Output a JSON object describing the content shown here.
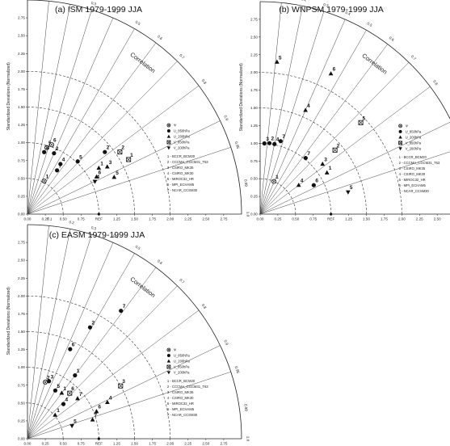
{
  "chart_data": [
    {
      "type": "taylor",
      "title": "(a) ISM 1979-1999 JJA",
      "ylabel": "Standardized Deviations (Normalized)",
      "arc_label": "Correlation",
      "ref_label": "REF",
      "xlim": [
        0,
        3.0
      ],
      "x_ticks": [
        "0.00",
        "0.25",
        "0.50",
        "0.75",
        "REF",
        "1.25",
        "1.50",
        "1.75",
        "2.00",
        "2.25",
        "2.50",
        "2.75"
      ],
      "y_ticks": [
        "0.00",
        "0.25",
        "0.50",
        "0.75",
        "1.00",
        "1.25",
        "1.50",
        "1.75",
        "2.00",
        "2.25",
        "2.50",
        "2.75"
      ],
      "correlation_ticks": [
        "0.1",
        "0.2",
        "0.3",
        "0.4",
        "0.5",
        "0.6",
        "0.7",
        "0.8",
        "0.9",
        "0.95",
        "0.99",
        "1.0"
      ],
      "legend_symbols": [
        "Ψ",
        "U_850hPa",
        "U_200hPa",
        "V_850hPa",
        "V_200hPa"
      ],
      "legend_models": [
        "1 - BCCR_BCM20",
        "2 - CCCMA_CGCM31_T63",
        "3 - CSIRO_MK35",
        "4 - CSIRO_MK30",
        "5 - MIROC32_HR",
        "6 - MPI_ECHAM5",
        "7 - NCAR_CCSM30"
      ],
      "points": [
        {
          "std": 0.52,
          "corr": 0.45,
          "label": "1",
          "marker": "circle-open"
        },
        {
          "std": 0.97,
          "corr": 0.28,
          "label": "5",
          "marker": "circle-open"
        },
        {
          "std": 1.03,
          "corr": 0.33,
          "label": "6",
          "marker": "circle-open"
        },
        {
          "std": 0.9,
          "corr": 0.26,
          "label": "3",
          "marker": "circle-filled"
        },
        {
          "std": 0.93,
          "corr": 0.4,
          "label": "2",
          "marker": "circle-filled"
        },
        {
          "std": 0.74,
          "corr": 0.56,
          "label": "7",
          "marker": "circle-filled"
        },
        {
          "std": 0.84,
          "corr": 0.55,
          "label": "4",
          "marker": "circle-filled"
        },
        {
          "std": 1.02,
          "corr": 0.69,
          "label": "5",
          "marker": "circle-filled"
        },
        {
          "std": 1.39,
          "corr": 0.78,
          "label": "2",
          "marker": "circle-filled"
        },
        {
          "std": 1.3,
          "corr": 0.86,
          "label": "3",
          "marker": "triangle"
        },
        {
          "std": 1.19,
          "corr": 0.84,
          "label": "1",
          "marker": "triangle"
        },
        {
          "std": 1.32,
          "corr": 0.92,
          "label": "5",
          "marker": "triangle"
        },
        {
          "std": 1.1,
          "corr": 0.88,
          "label": "6",
          "marker": "triangle"
        },
        {
          "std": 1.56,
          "corr": 0.83,
          "label": "2",
          "marker": "square"
        },
        {
          "std": 1.61,
          "corr": 0.88,
          "label": "1",
          "marker": "square"
        },
        {
          "std": 1.05,
          "corr": 0.9,
          "label": "4",
          "marker": "triangle-down"
        }
      ]
    },
    {
      "type": "taylor",
      "title": "(b) WNPSM 1979-1999 JJA",
      "ylabel": "Standardized Deviations (Normalized)",
      "arc_label": "Correlation",
      "ref_label": "REF",
      "xlim": [
        0,
        3.0
      ],
      "x_ticks": [
        "0.00",
        "0.25",
        "0.50",
        "0.75",
        "REF",
        "1.25",
        "1.50",
        "1.75",
        "2.00",
        "2.25",
        "2.50",
        "2.75"
      ],
      "y_ticks": [
        "0.00",
        "0.25",
        "0.50",
        "0.75",
        "1.00",
        "1.25",
        "1.50",
        "1.75",
        "2.00",
        "2.25",
        "2.50",
        "2.75"
      ],
      "correlation_ticks": [
        "0.1",
        "0.2",
        "0.3",
        "0.4",
        "0.5",
        "0.6",
        "0.7",
        "0.8",
        "0.9",
        "0.95",
        "0.99",
        "1.0"
      ],
      "legend_symbols": [
        "Ψ",
        "U_850hPa",
        "U_200hPa",
        "V_850hPa",
        "V_200hPa"
      ],
      "legend_models": [
        "1 - BCCR_BCM20",
        "2 - CCCMA_CGCM31_T63",
        "3 - CSIRO_MK35",
        "4 - CSIRO_MK30",
        "5 - MIROC32_HR",
        "6 - MPI_ECHAM5",
        "7 - NCAR_CCSM30"
      ],
      "points": [
        {
          "std": 2.16,
          "corr": 0.11,
          "label": "5",
          "marker": "triangle"
        },
        {
          "std": 2.22,
          "corr": 0.45,
          "label": "6",
          "marker": "triangle"
        },
        {
          "std": 1.0,
          "corr": 0.06,
          "label": "3",
          "marker": "circle-filled"
        },
        {
          "std": 1.01,
          "corr": 0.13,
          "label": "2",
          "marker": "circle-filled"
        },
        {
          "std": 1.01,
          "corr": 0.2,
          "label": "4",
          "marker": "circle-filled"
        },
        {
          "std": 1.07,
          "corr": 0.27,
          "label": "7",
          "marker": "circle-filled"
        },
        {
          "std": 0.5,
          "corr": 0.39,
          "label": "1",
          "marker": "circle-open"
        },
        {
          "std": 1.6,
          "corr": 0.4,
          "label": "4",
          "marker": "triangle"
        },
        {
          "std": 1.02,
          "corr": 0.63,
          "label": "7",
          "marker": "circle-filled"
        },
        {
          "std": 1.13,
          "corr": 0.78,
          "label": "3",
          "marker": "triangle"
        },
        {
          "std": 1.39,
          "corr": 0.76,
          "label": "2",
          "marker": "square"
        },
        {
          "std": 1.11,
          "corr": 0.85,
          "label": "1",
          "marker": "triangle"
        },
        {
          "std": 1.28,
          "corr": 0.97,
          "label": "5",
          "marker": "triangle-down"
        },
        {
          "std": 1.92,
          "corr": 0.74,
          "label": "5",
          "marker": "square"
        },
        {
          "std": 0.86,
          "corr": 0.88,
          "label": "6",
          "marker": "circle-filled"
        },
        {
          "std": 0.68,
          "corr": 0.8,
          "label": "4",
          "marker": "triangle"
        }
      ]
    },
    {
      "type": "taylor",
      "title": "(c) EASM 1979-1999 JJA",
      "ylabel": "Standardized Deviations (Normalized)",
      "arc_label": "Correlation",
      "ref_label": "REF",
      "xlim": [
        0,
        3.0
      ],
      "x_ticks": [
        "0.00",
        "0.25",
        "0.50",
        "0.75",
        "REF",
        "1.25",
        "1.50",
        "1.75",
        "2.00",
        "2.25",
        "2.50",
        "2.75"
      ],
      "y_ticks": [
        "0.00",
        "0.25",
        "0.50",
        "0.75",
        "1.00",
        "1.25",
        "1.50",
        "1.75",
        "2.00",
        "2.25",
        "2.50",
        "2.75"
      ],
      "correlation_ticks": [
        "0.1",
        "0.2",
        "0.3",
        "0.4",
        "0.5",
        "0.6",
        "0.7",
        "0.8",
        "0.9",
        "0.95",
        "0.99",
        "1.0"
      ],
      "legend_symbols": [
        "Ψ",
        "U_850hPa",
        "U_200hPa",
        "V_850hPa",
        "V_200hPa"
      ],
      "legend_models": [
        "1 - BCCR_BCM20",
        "2 - CCCMA_CGCM31_T63",
        "3 - CSIRO_MK35",
        "4 - CSIRO_MK30",
        "5 - MIROC32_HR",
        "6 - MPI_ECHAM5",
        "7 - NCAR_CCSM30"
      ],
      "points": [
        {
          "std": 2.22,
          "corr": 0.59,
          "label": "7",
          "marker": "circle-filled"
        },
        {
          "std": 1.79,
          "corr": 0.49,
          "label": "2",
          "marker": "circle-filled"
        },
        {
          "std": 1.39,
          "corr": 0.43,
          "label": "6",
          "marker": "circle-filled"
        },
        {
          "std": 1.11,
          "corr": 0.6,
          "label": "1",
          "marker": "circle-filled"
        },
        {
          "std": 1.5,
          "corr": 0.87,
          "label": "3",
          "marker": "square"
        },
        {
          "std": 0.86,
          "corr": 0.35,
          "label": "3",
          "marker": "circle-filled"
        },
        {
          "std": 0.83,
          "corr": 0.3,
          "label": "2",
          "marker": "circle-open"
        },
        {
          "std": 0.78,
          "corr": 0.5,
          "label": "5",
          "marker": "circle-filled"
        },
        {
          "std": 0.8,
          "corr": 0.6,
          "label": "1",
          "marker": "triangle"
        },
        {
          "std": 0.7,
          "corr": 0.72,
          "label": "4",
          "marker": "circle-filled"
        },
        {
          "std": 0.9,
          "corr": 0.78,
          "label": "7",
          "marker": "triangle"
        },
        {
          "std": 0.87,
          "corr": 0.68,
          "label": "6",
          "marker": "square"
        },
        {
          "std": 1.04,
          "corr": 0.93,
          "label": "6",
          "marker": "triangle"
        },
        {
          "std": 1.23,
          "corr": 0.91,
          "label": "4",
          "marker": "triangle"
        },
        {
          "std": 0.51,
          "corr": 0.76,
          "label": "1",
          "marker": "triangle"
        },
        {
          "std": 0.65,
          "corr": 0.96,
          "label": "5",
          "marker": "triangle-down"
        },
        {
          "std": 0.95,
          "corr": 0.96,
          "label": "7",
          "marker": "triangle"
        }
      ]
    }
  ]
}
